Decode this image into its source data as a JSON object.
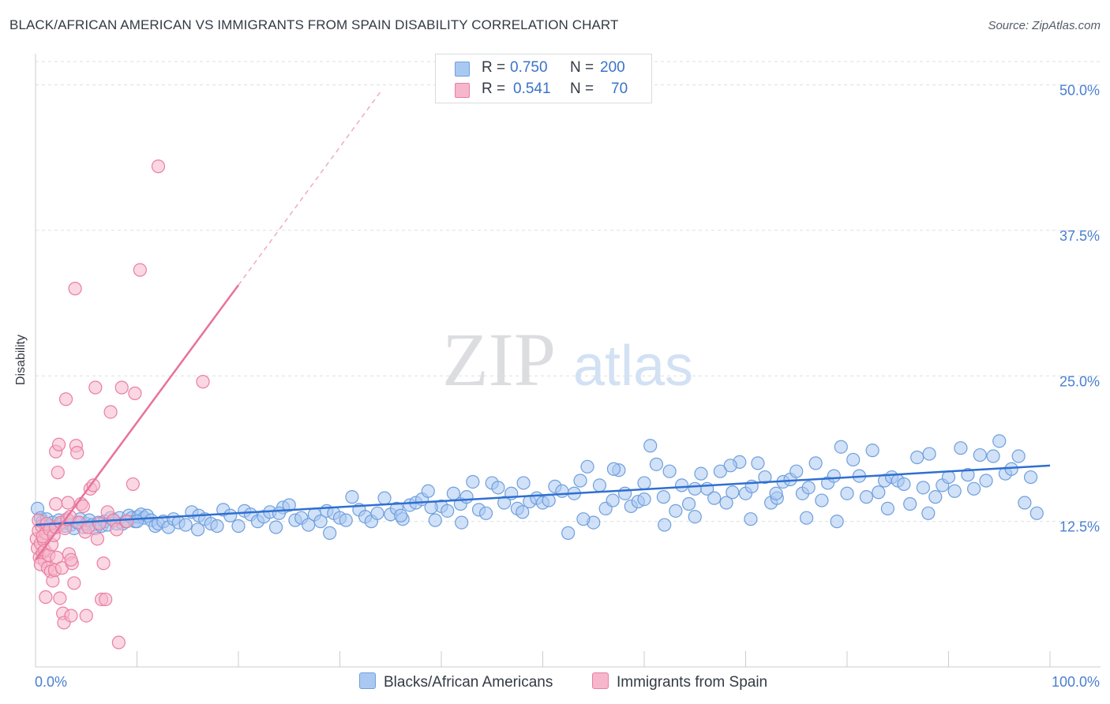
{
  "header": {
    "title": "BLACK/AFRICAN AMERICAN VS IMMIGRANTS FROM SPAIN DISABILITY CORRELATION CHART",
    "source": "Source: ZipAtlas.com"
  },
  "watermark": {
    "zip": "ZIP",
    "atlas": "atlas"
  },
  "legend": {
    "rows": [
      {
        "r_label": "R =",
        "r_value": "0.750",
        "n_label": "N =",
        "n_value": "200"
      },
      {
        "r_label": "R =",
        "r_value": "0.541",
        "n_label": "N =",
        "n_value": "70"
      }
    ]
  },
  "bottom_legend": [
    "Blacks/African Americans",
    "Immigrants from Spain"
  ],
  "colors": {
    "blue_fill": "#aac9f2",
    "blue_stroke": "#6f9fdc",
    "blue_line": "#2f6fd0",
    "pink_fill": "#f6b6cb",
    "pink_stroke": "#ea7ea2",
    "pink_line": "#e8729a",
    "tick_label": "#4a7fcf",
    "grid": "#dcdfe4"
  },
  "chart_data": {
    "type": "scatter",
    "title": "BLACK/AFRICAN AMERICAN VS IMMIGRANTS FROM SPAIN DISABILITY CORRELATION CHART",
    "xlabel": "",
    "ylabel": "Disability",
    "xlim": [
      0,
      100
    ],
    "ylim": [
      0,
      52
    ],
    "x_tick_labels": [
      "0.0%",
      "100.0%"
    ],
    "y_ticks": [
      12.5,
      25.0,
      37.5,
      50.0
    ],
    "y_tick_labels": [
      "12.5%",
      "25.0%",
      "37.5%",
      "50.0%"
    ],
    "grid": true,
    "legend_position": "top-center",
    "series": [
      {
        "name": "Blacks/African Americans",
        "color": "#6f9fdc",
        "r": 0.75,
        "n": 200,
        "trend": {
          "x": [
            0,
            100
          ],
          "y": [
            12.2,
            17.3
          ],
          "style": "solid"
        },
        "points": [
          [
            0.2,
            13.6
          ],
          [
            0.5,
            12.8
          ],
          [
            0.7,
            12.5
          ],
          [
            0.9,
            12.2
          ],
          [
            1.1,
            12.7
          ],
          [
            1.4,
            12.1
          ],
          [
            1.7,
            12.4
          ],
          [
            2.0,
            12.0
          ],
          [
            2.3,
            12.6
          ],
          [
            2.6,
            12.3
          ],
          [
            2.9,
            12.1
          ],
          [
            3.2,
            12.6
          ],
          [
            3.5,
            12.2
          ],
          [
            3.8,
            11.9
          ],
          [
            4.1,
            12.4
          ],
          [
            4.4,
            12.7
          ],
          [
            4.7,
            12.0
          ],
          [
            5.0,
            12.3
          ],
          [
            5.3,
            12.6
          ],
          [
            5.6,
            12.2
          ],
          [
            5.9,
            11.9
          ],
          [
            6.2,
            12.4
          ],
          [
            6.5,
            12.1
          ],
          [
            6.8,
            12.5
          ],
          [
            7.1,
            12.2
          ],
          [
            7.4,
            12.8
          ],
          [
            7.7,
            12.6
          ],
          [
            8.0,
            12.3
          ],
          [
            8.3,
            12.8
          ],
          [
            8.6,
            12.3
          ],
          [
            8.9,
            12.5
          ],
          [
            9.2,
            13.0
          ],
          [
            9.5,
            12.8
          ],
          [
            9.8,
            12.5
          ],
          [
            10.1,
            12.9
          ],
          [
            10.4,
            13.1
          ],
          [
            10.7,
            12.8
          ],
          [
            11.0,
            13.0
          ],
          [
            11.4,
            12.6
          ],
          [
            11.8,
            12.1
          ],
          [
            12.1,
            12.3
          ],
          [
            12.6,
            12.5
          ],
          [
            13.1,
            12.0
          ],
          [
            13.6,
            12.7
          ],
          [
            14.1,
            12.4
          ],
          [
            14.8,
            12.2
          ],
          [
            15.4,
            13.3
          ],
          [
            16.1,
            13.0
          ],
          [
            16.7,
            12.7
          ],
          [
            17.3,
            12.3
          ],
          [
            17.9,
            12.1
          ],
          [
            18.5,
            13.5
          ],
          [
            19.2,
            13.0
          ],
          [
            20.0,
            12.1
          ],
          [
            20.6,
            13.4
          ],
          [
            21.2,
            13.1
          ],
          [
            21.9,
            12.5
          ],
          [
            22.5,
            12.9
          ],
          [
            23.1,
            13.3
          ],
          [
            23.7,
            12.0
          ],
          [
            24.4,
            13.7
          ],
          [
            25.0,
            13.9
          ],
          [
            25.6,
            12.6
          ],
          [
            26.2,
            12.8
          ],
          [
            26.9,
            12.2
          ],
          [
            27.5,
            13.1
          ],
          [
            28.1,
            12.5
          ],
          [
            28.7,
            13.4
          ],
          [
            29.4,
            13.2
          ],
          [
            30.0,
            12.8
          ],
          [
            30.6,
            12.6
          ],
          [
            31.2,
            14.6
          ],
          [
            31.9,
            13.5
          ],
          [
            32.5,
            12.9
          ],
          [
            33.1,
            12.5
          ],
          [
            33.7,
            13.2
          ],
          [
            34.4,
            14.5
          ],
          [
            35.0,
            13.1
          ],
          [
            35.6,
            13.6
          ],
          [
            36.2,
            12.7
          ],
          [
            36.9,
            13.9
          ],
          [
            37.5,
            14.1
          ],
          [
            38.1,
            14.4
          ],
          [
            38.7,
            15.1
          ],
          [
            39.4,
            12.6
          ],
          [
            40.0,
            13.8
          ],
          [
            40.6,
            13.4
          ],
          [
            41.2,
            14.9
          ],
          [
            41.9,
            14.0
          ],
          [
            42.5,
            14.6
          ],
          [
            43.1,
            15.9
          ],
          [
            43.7,
            13.5
          ],
          [
            44.4,
            13.2
          ],
          [
            45.0,
            15.8
          ],
          [
            45.6,
            15.4
          ],
          [
            46.2,
            14.1
          ],
          [
            46.9,
            14.9
          ],
          [
            47.5,
            13.6
          ],
          [
            48.1,
            15.8
          ],
          [
            48.7,
            14.2
          ],
          [
            49.4,
            14.5
          ],
          [
            50.0,
            14.1
          ],
          [
            50.6,
            14.3
          ],
          [
            51.2,
            15.5
          ],
          [
            51.9,
            15.1
          ],
          [
            52.5,
            11.5
          ],
          [
            53.1,
            14.9
          ],
          [
            53.7,
            16.0
          ],
          [
            54.4,
            17.2
          ],
          [
            55.0,
            12.4
          ],
          [
            55.6,
            15.6
          ],
          [
            56.2,
            13.6
          ],
          [
            56.9,
            14.3
          ],
          [
            57.5,
            16.9
          ],
          [
            58.1,
            14.9
          ],
          [
            58.7,
            13.8
          ],
          [
            59.4,
            14.2
          ],
          [
            60.0,
            14.4
          ],
          [
            60.6,
            19.0
          ],
          [
            61.2,
            17.4
          ],
          [
            61.9,
            14.6
          ],
          [
            62.5,
            16.8
          ],
          [
            63.1,
            13.4
          ],
          [
            63.7,
            15.6
          ],
          [
            64.4,
            14.0
          ],
          [
            65.0,
            15.3
          ],
          [
            65.6,
            16.6
          ],
          [
            66.2,
            15.3
          ],
          [
            66.9,
            14.5
          ],
          [
            67.5,
            16.8
          ],
          [
            68.1,
            14.1
          ],
          [
            68.7,
            15.0
          ],
          [
            69.4,
            17.6
          ],
          [
            70.0,
            14.9
          ],
          [
            70.6,
            15.5
          ],
          [
            71.2,
            17.5
          ],
          [
            71.9,
            16.3
          ],
          [
            72.5,
            14.1
          ],
          [
            73.1,
            14.5
          ],
          [
            73.7,
            15.9
          ],
          [
            74.4,
            16.1
          ],
          [
            75.0,
            16.8
          ],
          [
            75.6,
            14.9
          ],
          [
            76.2,
            15.4
          ],
          [
            76.9,
            17.5
          ],
          [
            77.5,
            14.3
          ],
          [
            78.1,
            15.8
          ],
          [
            78.7,
            16.4
          ],
          [
            79.4,
            18.9
          ],
          [
            80.0,
            14.9
          ],
          [
            80.6,
            17.8
          ],
          [
            81.2,
            16.4
          ],
          [
            81.9,
            14.6
          ],
          [
            82.5,
            18.6
          ],
          [
            83.1,
            15.0
          ],
          [
            83.7,
            16.0
          ],
          [
            84.4,
            16.3
          ],
          [
            85.0,
            16.0
          ],
          [
            85.6,
            15.7
          ],
          [
            86.2,
            14.0
          ],
          [
            86.9,
            18.0
          ],
          [
            87.5,
            15.4
          ],
          [
            88.1,
            18.3
          ],
          [
            88.7,
            14.6
          ],
          [
            89.4,
            15.6
          ],
          [
            90.0,
            16.3
          ],
          [
            90.6,
            15.1
          ],
          [
            91.2,
            18.8
          ],
          [
            91.9,
            16.5
          ],
          [
            92.5,
            15.3
          ],
          [
            93.1,
            18.2
          ],
          [
            93.7,
            16.0
          ],
          [
            94.4,
            18.1
          ],
          [
            95.0,
            19.4
          ],
          [
            95.6,
            16.6
          ],
          [
            96.2,
            17.0
          ],
          [
            96.9,
            18.1
          ],
          [
            97.5,
            14.1
          ],
          [
            98.1,
            16.3
          ],
          [
            98.7,
            13.2
          ],
          [
            54.0,
            12.7
          ],
          [
            62.0,
            12.2
          ],
          [
            70.5,
            12.7
          ],
          [
            76.0,
            12.8
          ],
          [
            79.0,
            12.5
          ],
          [
            84.0,
            13.6
          ],
          [
            88.0,
            13.2
          ],
          [
            60.0,
            15.8
          ],
          [
            73.0,
            14.9
          ],
          [
            65.0,
            12.9
          ],
          [
            42.0,
            12.4
          ],
          [
            48.0,
            13.3
          ],
          [
            36.0,
            13.0
          ],
          [
            29.0,
            11.5
          ],
          [
            16.0,
            11.8
          ],
          [
            10.0,
            12.5
          ],
          [
            24.0,
            13.2
          ],
          [
            39.0,
            13.7
          ],
          [
            57.0,
            17.0
          ],
          [
            68.5,
            17.3
          ]
        ]
      },
      {
        "name": "Immigrants from Spain",
        "color": "#ea7ea2",
        "r": 0.541,
        "n": 70,
        "trend": {
          "x": [
            0,
            20
          ],
          "y": [
            9.2,
            32.8
          ],
          "style": "solid",
          "dashed_extension": {
            "x": [
              20,
              34
            ],
            "y": [
              32.8,
              49.4
            ]
          }
        },
        "points": [
          [
            0.1,
            11.0
          ],
          [
            0.2,
            10.2
          ],
          [
            0.3,
            11.7
          ],
          [
            0.4,
            9.4
          ],
          [
            0.5,
            10.6
          ],
          [
            0.6,
            12.1
          ],
          [
            0.7,
            9.8
          ],
          [
            0.8,
            10.9
          ],
          [
            0.9,
            9.1
          ],
          [
            1.0,
            11.5
          ],
          [
            0.3,
            12.6
          ],
          [
            0.5,
            8.8
          ],
          [
            0.7,
            11.2
          ],
          [
            0.9,
            10.0
          ],
          [
            1.1,
            12.3
          ],
          [
            1.2,
            8.5
          ],
          [
            1.3,
            9.6
          ],
          [
            1.4,
            11.8
          ],
          [
            1.5,
            8.2
          ],
          [
            1.6,
            10.5
          ],
          [
            1.7,
            7.4
          ],
          [
            1.8,
            11.3
          ],
          [
            1.9,
            8.3
          ],
          [
            2.0,
            18.5
          ],
          [
            2.0,
            12.0
          ],
          [
            2.1,
            9.4
          ],
          [
            2.2,
            16.7
          ],
          [
            2.3,
            19.1
          ],
          [
            2.4,
            5.9
          ],
          [
            2.5,
            12.4
          ],
          [
            2.6,
            8.5
          ],
          [
            2.7,
            4.6
          ],
          [
            2.8,
            3.8
          ],
          [
            2.9,
            11.9
          ],
          [
            3.0,
            23.0
          ],
          [
            3.1,
            12.7
          ],
          [
            3.2,
            14.1
          ],
          [
            3.3,
            9.7
          ],
          [
            3.4,
            12.9
          ],
          [
            3.5,
            4.4
          ],
          [
            3.6,
            8.9
          ],
          [
            3.8,
            7.2
          ],
          [
            3.9,
            32.5
          ],
          [
            4.0,
            19.0
          ],
          [
            4.1,
            18.4
          ],
          [
            4.3,
            12.4
          ],
          [
            4.5,
            14.0
          ],
          [
            4.7,
            13.8
          ],
          [
            4.9,
            11.6
          ],
          [
            5.0,
            4.4
          ],
          [
            5.2,
            12.0
          ],
          [
            5.4,
            15.3
          ],
          [
            5.7,
            15.6
          ],
          [
            5.9,
            24.0
          ],
          [
            6.1,
            11.0
          ],
          [
            6.3,
            12.3
          ],
          [
            6.5,
            5.8
          ],
          [
            6.7,
            8.9
          ],
          [
            6.9,
            5.8
          ],
          [
            7.1,
            13.3
          ],
          [
            7.4,
            21.9
          ],
          [
            7.7,
            12.6
          ],
          [
            8.0,
            11.8
          ],
          [
            8.2,
            2.1
          ],
          [
            8.5,
            24.0
          ],
          [
            9.0,
            12.5
          ],
          [
            9.6,
            15.7
          ],
          [
            9.8,
            23.5
          ],
          [
            10.3,
            34.1
          ],
          [
            12.1,
            43.0
          ]
        ]
      }
    ],
    "extra_pink_points": [
      [
        16.5,
        24.5
      ],
      [
        3.5,
        9.2
      ],
      [
        1.0,
        6.0
      ],
      [
        2.0,
        14.0
      ]
    ]
  }
}
